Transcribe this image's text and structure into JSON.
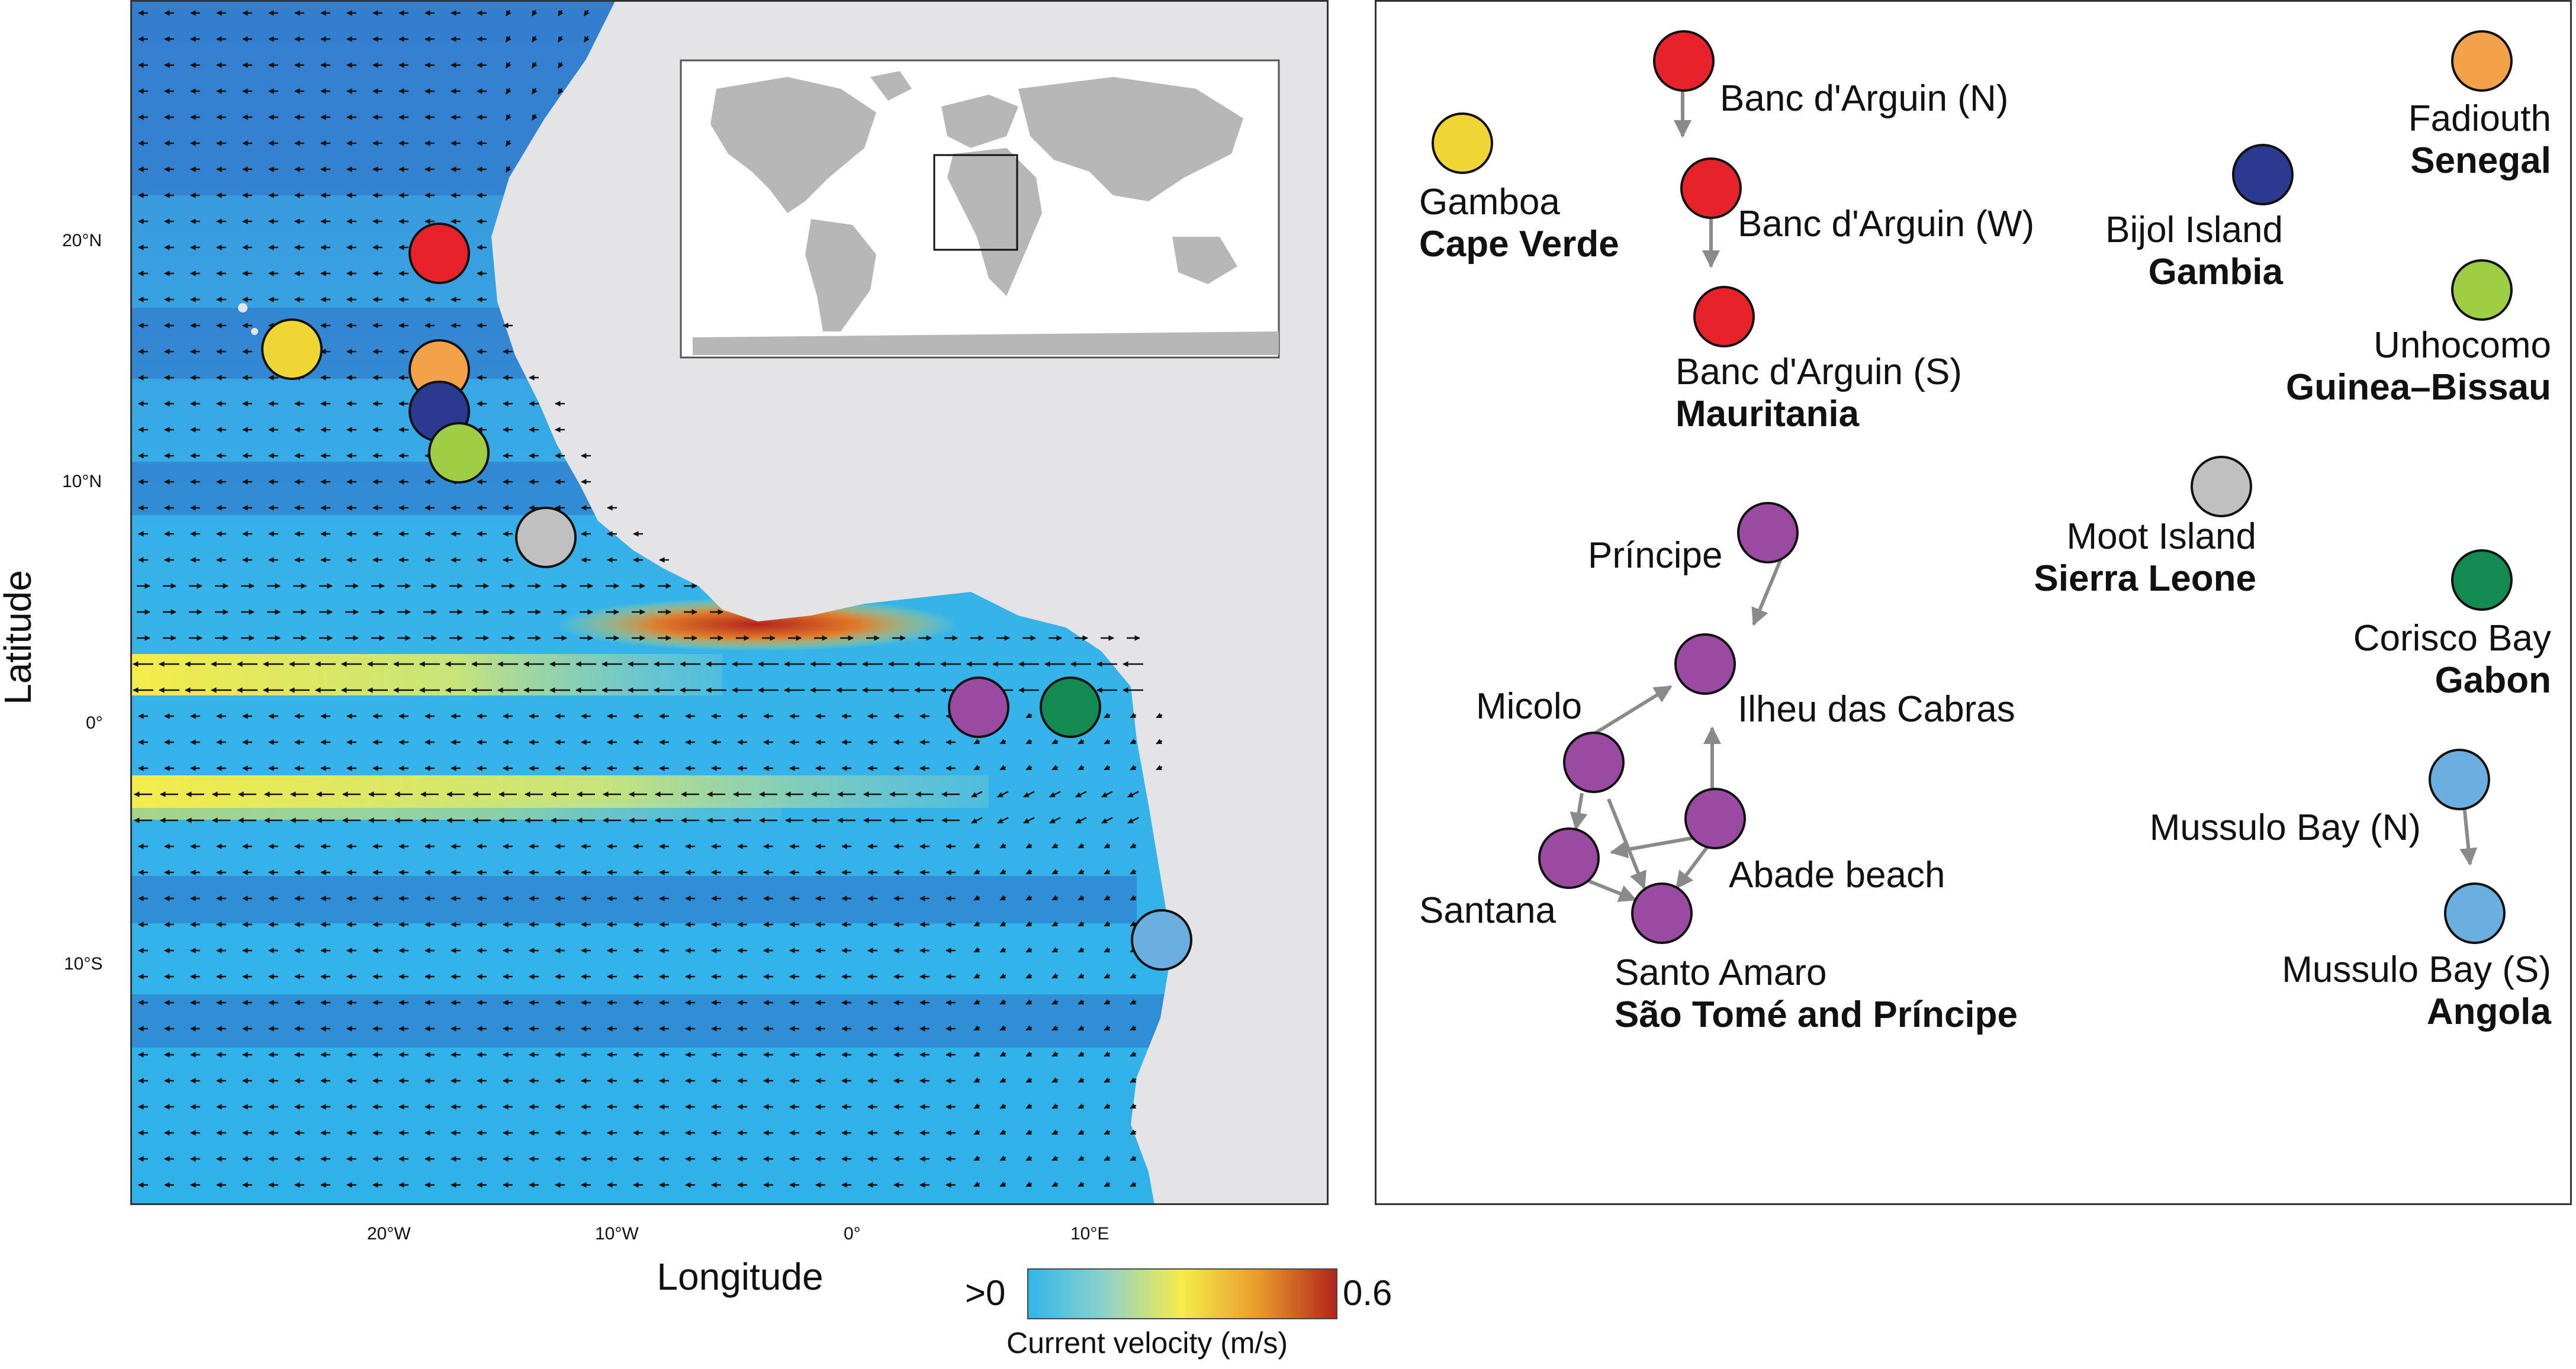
{
  "map": {
    "axis_labels": {
      "x": "Longitude",
      "y": "Latitude"
    },
    "lat_ticks": [
      "20°N",
      "10°N",
      "0°",
      "10°S"
    ],
    "lon_ticks": [
      "20°W",
      "10°W",
      "0°",
      "10°E"
    ],
    "colorbar": {
      "min_label": ">0",
      "max_label": "0.6",
      "title": "Current velocity (m/s)",
      "colors": [
        "#31b6ea",
        "#8fd2c8",
        "#f4ec4a",
        "#e89a2c",
        "#b2241c"
      ]
    },
    "inset": {
      "description_hidden": true
    },
    "site_markers": [
      {
        "name": "banc-darguin",
        "color": "#e8222a"
      },
      {
        "name": "gamboa",
        "color": "#f0d635"
      },
      {
        "name": "fadiouth",
        "color": "#f4a24a"
      },
      {
        "name": "bijol",
        "color": "#2b3990"
      },
      {
        "name": "unhocomo",
        "color": "#9fcd44"
      },
      {
        "name": "moot",
        "color": "#c0c0c0"
      },
      {
        "name": "sao-tome",
        "color": "#9a4aa0"
      },
      {
        "name": "corisco",
        "color": "#138a52"
      },
      {
        "name": "mussulo",
        "color": "#6baee0"
      }
    ]
  },
  "network": {
    "groups": [
      {
        "id": "mauritania",
        "country": "Mauritania",
        "color": "#e8222a",
        "sites": [
          "Banc d'Arguin (N)",
          "Banc d'Arguin (W)",
          "Banc d'Arguin (S)"
        ]
      },
      {
        "id": "capeverde",
        "country": "Cape Verde",
        "color": "#f0d635",
        "sites": [
          "Gamboa"
        ]
      },
      {
        "id": "senegal",
        "country": "Senegal",
        "color": "#f4a24a",
        "sites": [
          "Fadiouth"
        ]
      },
      {
        "id": "gambia",
        "country": "Gambia",
        "color": "#2b3990",
        "sites": [
          "Bijol Island"
        ]
      },
      {
        "id": "guinea",
        "country": "Guinea–Bissau",
        "color": "#9fcd44",
        "sites": [
          "Unhocomo"
        ]
      },
      {
        "id": "sierra",
        "country": "Sierra Leone",
        "color": "#c0c0c0",
        "sites": [
          "Moot Island"
        ]
      },
      {
        "id": "gabon",
        "country": "Gabon",
        "color": "#138a52",
        "sites": [
          "Corisco Bay"
        ]
      },
      {
        "id": "stp",
        "country": "São Tomé and Príncipe",
        "color": "#9a4aa0",
        "sites": [
          "Príncipe",
          "Ilheu das Cabras",
          "Micolo",
          "Abade beach",
          "Santana",
          "Santo Amaro"
        ]
      },
      {
        "id": "angola",
        "country": "Angola",
        "color": "#6baee0",
        "sites": [
          "Mussulo Bay (N)",
          "Mussulo Bay (S)"
        ]
      }
    ],
    "edge_color": "#8a8a8a"
  }
}
